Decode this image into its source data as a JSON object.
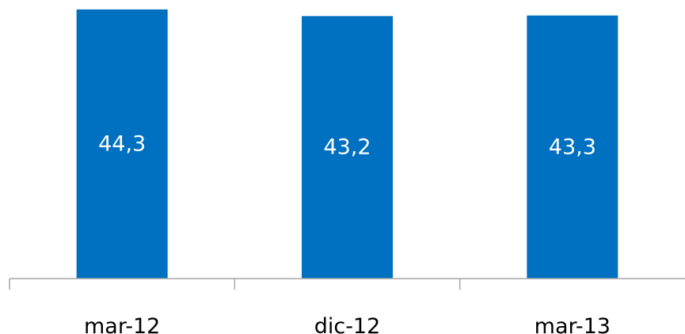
{
  "chart_data": {
    "type": "bar",
    "categories": [
      "mar-12",
      "dic-12",
      "mar-13"
    ],
    "values": [
      44.3,
      43.2,
      43.3
    ],
    "value_labels": [
      "44,3",
      "43,2",
      "43,3"
    ],
    "title": "",
    "xlabel": "",
    "ylabel": "",
    "ylim": [
      0,
      45.2
    ],
    "grid": false,
    "legend": "none",
    "bar_color": "#0070c0",
    "axis_color": "#a6a6a6"
  }
}
